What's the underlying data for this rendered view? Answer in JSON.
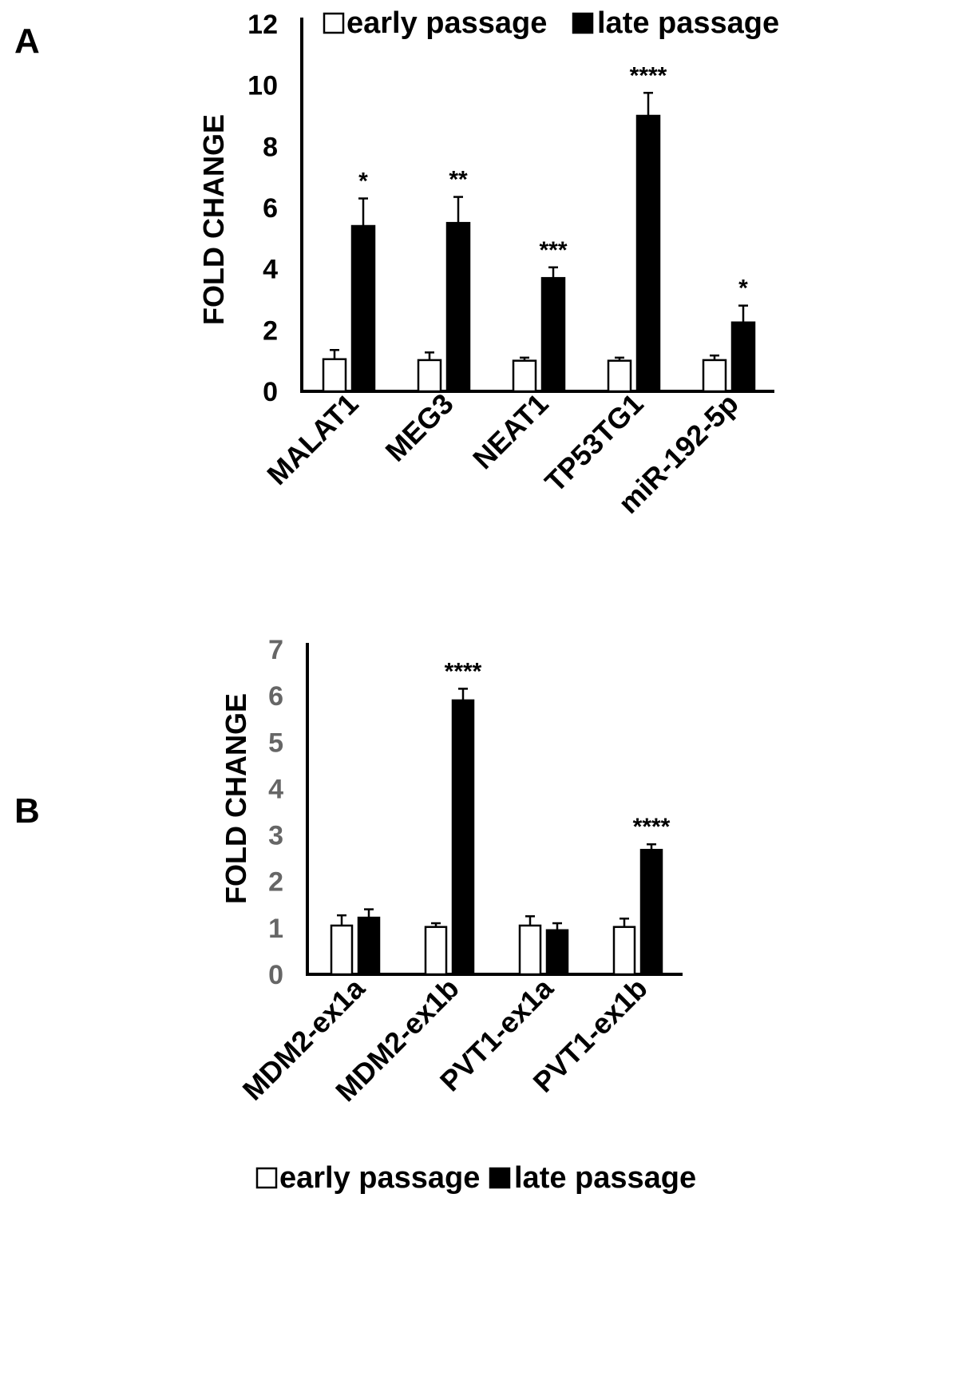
{
  "colors": {
    "early": "#ffffff",
    "late": "#000000",
    "stroke": "#000000",
    "tick_a": "#000000",
    "tick_b": "#666666"
  },
  "chart_data": [
    {
      "type": "bar",
      "panel": "A",
      "ylabel": "FOLD CHANGE",
      "ylim": [
        0,
        12
      ],
      "yticks": [
        "0",
        "2",
        "4",
        "6",
        "8",
        "10",
        "12"
      ],
      "categories": [
        "MALAT1",
        "MEG3",
        "NEAT1",
        "TP53TG1",
        "miR-192-5p"
      ],
      "series": [
        {
          "name": "early passage",
          "values": [
            1.05,
            1.02,
            1.0,
            1.0,
            1.02
          ],
          "errors": [
            0.3,
            0.25,
            0.1,
            0.1,
            0.15
          ]
        },
        {
          "name": "late passage",
          "values": [
            5.4,
            5.5,
            3.7,
            9.0,
            2.25
          ],
          "errors": [
            0.9,
            0.85,
            0.35,
            0.75,
            0.55
          ]
        }
      ],
      "significance": [
        "*",
        "**",
        "***",
        "****",
        "*"
      ],
      "legend": {
        "position": "top",
        "early": "early passage",
        "late": "late passage"
      }
    },
    {
      "type": "bar",
      "panel": "B",
      "ylabel": "FOLD CHANGE",
      "ylim": [
        0,
        7
      ],
      "yticks": [
        "0",
        "1",
        "2",
        "3",
        "4",
        "5",
        "6",
        "7"
      ],
      "categories": [
        "MDM2-ex1a",
        "MDM2-ex1b",
        "PVT1-ex1a",
        "PVT1-ex1b"
      ],
      "series": [
        {
          "name": "early passage",
          "values": [
            1.05,
            1.02,
            1.05,
            1.02
          ],
          "errors": [
            0.22,
            0.08,
            0.2,
            0.18
          ]
        },
        {
          "name": "late passage",
          "values": [
            1.22,
            5.9,
            0.95,
            2.68
          ],
          "errors": [
            0.18,
            0.25,
            0.15,
            0.12
          ]
        }
      ],
      "significance": [
        "",
        "****",
        "",
        "****"
      ],
      "legend": {
        "position": "bottom",
        "early": "early passage",
        "late": "late passage"
      }
    }
  ]
}
